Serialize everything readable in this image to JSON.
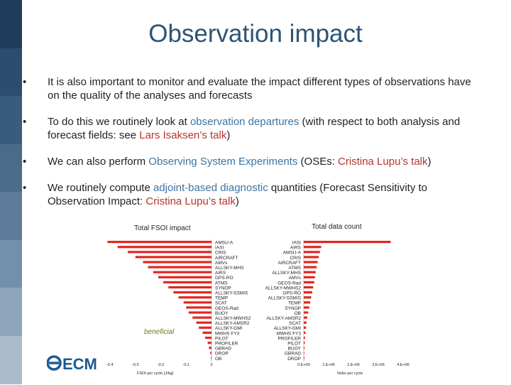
{
  "colors": {
    "title": "#2e5376",
    "highlight_blue": "#3b74a3",
    "highlight_red": "#b8332b",
    "bar": "#e3261f",
    "sidebar": [
      "#1f3c5a",
      "#2c4d6d",
      "#3a5c7c",
      "#4b6b8b",
      "#5e7c9a",
      "#7390aa",
      "#8ea6bc",
      "#aabccc"
    ]
  },
  "title": "Observation impact",
  "bullets": [
    {
      "marker": "•",
      "parts": [
        {
          "text": "It is also important to monitor and evaluate the impact different types of observations have on the quality of the analyses and forecasts",
          "style": "normal"
        }
      ]
    },
    {
      "marker": "•",
      "parts": [
        {
          "text": "To do this we routinely look at ",
          "style": "normal"
        },
        {
          "text": "observation departures",
          "style": "blue"
        },
        {
          "text": " (with respect to both analysis and forecast fields: see ",
          "style": "normal"
        },
        {
          "text": "Lars Isaksen’s talk",
          "style": "red"
        },
        {
          "text": ")",
          "style": "normal"
        }
      ]
    },
    {
      "marker": "•",
      "parts": [
        {
          "text": "We can also perform ",
          "style": "normal"
        },
        {
          "text": "Observing System Experiments",
          "style": "blue"
        },
        {
          "text": " (OSEs: ",
          "style": "normal"
        },
        {
          "text": "Cristina Lupu’s talk",
          "style": "red"
        },
        {
          "text": ")",
          "style": "normal"
        }
      ]
    },
    {
      "marker": "•",
      "parts": [
        {
          "text": "We routinely compute ",
          "style": "normal"
        },
        {
          "text": "adjoint-based diagnostic",
          "style": "blue"
        },
        {
          "text": " quantities (Forecast Sensitivity to Observation Impact: ",
          "style": "normal"
        },
        {
          "text": "Cristina Lupu’s talk",
          "style": "red"
        },
        {
          "text": ")",
          "style": "normal"
        }
      ]
    }
  ],
  "chart_data": [
    {
      "type": "bar",
      "orientation": "horizontal",
      "title": "Total FSOI impact",
      "xlabel": "FSOI per cycle [J/kg]",
      "ylabel": "",
      "xlim": [
        -0.4,
        0
      ],
      "x_ticks": [
        "-0.4",
        "-0.3",
        "-0.2",
        "-0.1",
        "0"
      ],
      "annotation": "beneficial",
      "categories": [
        "AMSU-A",
        "IASI",
        "CRIS",
        "AIRCRAFT",
        "AMVs",
        "ALLSKY-MHS",
        "AIRS",
        "GPS-RO",
        "ATMS",
        "SYNOP",
        "ALLSKY-SSMIS",
        "TEMP",
        "SCAT",
        "GEOS-Rad",
        "BUOY",
        "ALLSKY-MWHS2",
        "ALLSKY-AMSR2",
        "ALLSKY-GMI",
        "MWHS FY3",
        "PILOT",
        "PROFILER",
        "GBRAD",
        "DROP",
        "OB"
      ],
      "values": [
        -0.41,
        -0.37,
        -0.33,
        -0.3,
        -0.27,
        -0.25,
        -0.23,
        -0.21,
        -0.19,
        -0.17,
        -0.15,
        -0.13,
        -0.11,
        -0.1,
        -0.09,
        -0.075,
        -0.06,
        -0.05,
        -0.035,
        -0.025,
        -0.015,
        -0.01,
        -0.005,
        -0.002
      ]
    },
    {
      "type": "bar",
      "orientation": "horizontal",
      "title": "Total data count",
      "xlabel": "Nobs per cycle",
      "ylabel": "",
      "xlim": [
        0,
        4000000
      ],
      "x_ticks": [
        "0.E+00",
        "1.E+06",
        "2.E+06",
        "3.E+06",
        "4.E+06"
      ],
      "categories": [
        "IASI",
        "AIRS",
        "AMSU-A",
        "CRIS",
        "AIRCRAFT",
        "ATMS",
        "ALLSKY-MHS",
        "AMVs",
        "GEOS-Rad",
        "ALLSKY-MWHS2",
        "GPS-RO",
        "ALLSKY-SSMIS",
        "TEMP",
        "SYNOP",
        "OB",
        "ALLSKY-AMSR2",
        "SCAT",
        "ALLSKY-GMI",
        "MWHS FY3",
        "PROFILER",
        "PILOT",
        "BUOY",
        "GBRAD",
        "DROP"
      ],
      "values": [
        3500000,
        700000,
        650000,
        600000,
        560000,
        520000,
        480000,
        450000,
        420000,
        380000,
        340000,
        300000,
        260000,
        220000,
        180000,
        140000,
        110000,
        90000,
        70000,
        50000,
        40000,
        30000,
        20000,
        10000
      ]
    }
  ]
}
